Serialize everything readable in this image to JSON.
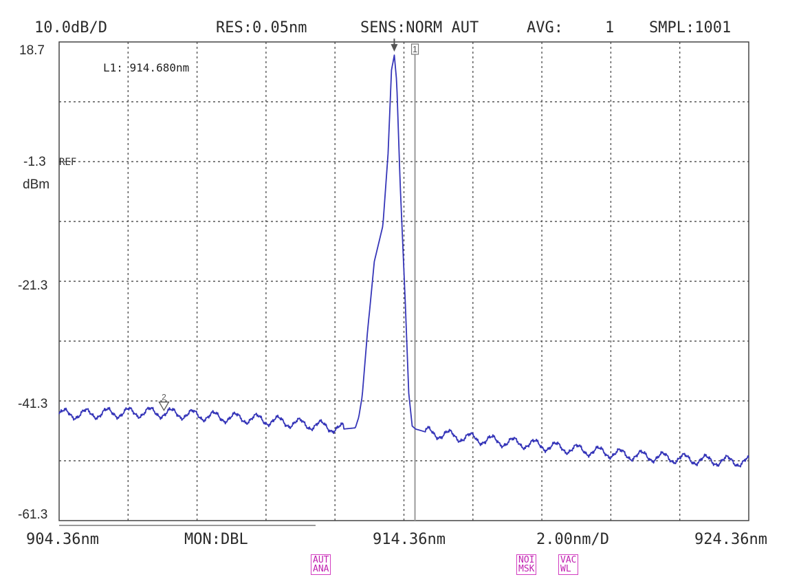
{
  "header": {
    "scale": "10.0dB/D",
    "resolution": "RES:0.05nm",
    "sensitivity": "SENS:NORM AUT",
    "average_label": "AVG:",
    "average_value": "1",
    "sampling": "SMPL:1001"
  },
  "marker": {
    "readout": "L1: 914.680nm",
    "line_marker_label": "1",
    "trace_marker_label": "2"
  },
  "y_axis": {
    "ref_label": "REF",
    "unit": "dBm",
    "tick_labels": [
      "18.7",
      "-1.3",
      "-21.3",
      "-41.3",
      "-61.3"
    ]
  },
  "footer": {
    "start": "904.36nm",
    "monitor": "MON:DBL",
    "center": "914.36nm",
    "span_per_div": "2.00nm/D",
    "stop": "924.36nm"
  },
  "badges": [
    {
      "line1": "AUT",
      "line2": "ANA"
    },
    {
      "line1": "NOI",
      "line2": "MSK"
    },
    {
      "line1": "VAC",
      "line2": "WL"
    }
  ],
  "colors": {
    "trace": "#3434b8",
    "grid": "#555555",
    "marker_line": "#9a9a9a",
    "badge": "#d23cc0"
  },
  "chart_data": {
    "type": "line",
    "title": "",
    "xlabel": "",
    "ylabel": "dBm",
    "xlim": [
      904.36,
      924.36
    ],
    "ylim": [
      -61.3,
      18.7
    ],
    "x_divisions": 10,
    "y_divisions": 8,
    "grid": true,
    "marker_wavelength": 914.68,
    "series": [
      {
        "x": [
          904.36,
          905.0,
          906.0,
          907.0,
          908.0,
          909.0,
          910.0,
          911.0,
          912.0,
          912.6,
          912.95,
          913.05,
          913.15,
          913.3,
          913.5,
          913.75,
          913.9,
          914.0,
          914.08,
          914.15,
          914.25,
          914.4,
          914.5,
          914.6,
          914.7,
          915.0,
          916.0,
          917.0,
          918.0,
          919.0,
          920.0,
          921.0,
          922.0,
          923.0,
          924.36
        ],
        "y": [
          -43.5,
          -43.5,
          -43.3,
          -43.2,
          -43.5,
          -44.0,
          -44.3,
          -44.9,
          -45.5,
          -46.0,
          -45.8,
          -44.0,
          -40.5,
          -30.0,
          -18.0,
          -12.0,
          0.0,
          14.0,
          16.5,
          12.0,
          -5.0,
          -25.0,
          -40.0,
          -45.5,
          -46.0,
          -46.5,
          -47.3,
          -48.0,
          -48.5,
          -49.2,
          -49.8,
          -50.4,
          -50.8,
          -51.2,
          -51.5
        ]
      }
    ]
  }
}
